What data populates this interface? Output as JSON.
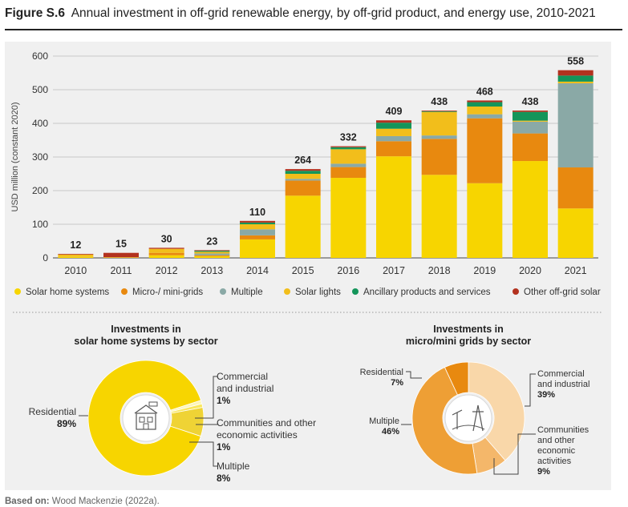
{
  "figure": {
    "number": "Figure S.6",
    "caption": "Annual investment in off-grid renewable energy, by off-grid product, and energy use, 2010-2021"
  },
  "source": {
    "label": "Based on:",
    "text": "Wood Mackenzie (2022a)."
  },
  "colors": {
    "solar_home_systems": "#f7d500",
    "micro_mini_grids": "#e8890f",
    "multiple": "#8aa9a6",
    "solar_lights": "#f2be1b",
    "ancillary": "#14955a",
    "other": "#b3321f",
    "panel_bg": "#f0f0f0"
  },
  "chart_data": [
    {
      "type": "bar",
      "stacked": true,
      "ylabel": "USD million (constant 2020)",
      "ylim": [
        0,
        600
      ],
      "yticks": [
        0,
        100,
        200,
        300,
        400,
        500,
        600
      ],
      "grid": true,
      "legend_position": "bottom",
      "categories": [
        "2010",
        "2011",
        "2012",
        "2013",
        "2014",
        "2015",
        "2016",
        "2017",
        "2018",
        "2019",
        "2020",
        "2021"
      ],
      "totals": [
        "12",
        "15",
        "30",
        "23",
        "110",
        "264",
        "332",
        "409",
        "438",
        "468",
        "438",
        "558"
      ],
      "series": [
        {
          "name": "Solar home systems",
          "color_key": "solar_home_systems",
          "values": [
            3,
            0,
            8,
            5,
            55,
            185,
            238,
            302,
            247,
            222,
            288,
            147
          ]
        },
        {
          "name": "Micro-/ mini-grids",
          "color_key": "micro_mini_grids",
          "values": [
            0,
            0,
            7,
            3,
            12,
            45,
            32,
            45,
            107,
            193,
            82,
            122
          ]
        },
        {
          "name": "Multiple",
          "color_key": "multiple",
          "values": [
            0,
            0,
            0,
            5,
            18,
            5,
            10,
            15,
            10,
            12,
            35,
            250
          ]
        },
        {
          "name": "Solar lights",
          "color_key": "solar_lights",
          "values": [
            7,
            2,
            12,
            5,
            15,
            15,
            43,
            22,
            70,
            23,
            3,
            5
          ]
        },
        {
          "name": "Ancillary products and services",
          "color_key": "ancillary",
          "values": [
            0,
            0,
            0,
            3,
            5,
            9,
            6,
            18,
            2,
            13,
            26,
            18
          ]
        },
        {
          "name": "Other off-grid solar",
          "color_key": "other",
          "values": [
            2,
            13,
            3,
            2,
            5,
            5,
            3,
            7,
            2,
            5,
            4,
            16
          ]
        }
      ]
    },
    {
      "type": "pie",
      "donut": true,
      "title": "Investments in solar home systems by sector",
      "title_lines": [
        "Investments in",
        "solar home systems by sector"
      ],
      "slices": [
        {
          "label_lines": [
            "Commercial",
            "and industrial"
          ],
          "value": 1,
          "display": "1%",
          "color": "#fdf5b8"
        },
        {
          "label_lines": [
            "Communities and other",
            "economic activities"
          ],
          "value": 1,
          "display": "1%",
          "color": "#f9e75e"
        },
        {
          "label_lines": [
            "Multiple"
          ],
          "value": 8,
          "display": "8%",
          "color": "#efd335"
        },
        {
          "label_lines": [
            "Residential"
          ],
          "value": 89,
          "display": "89%",
          "color": "#f7d500"
        }
      ]
    },
    {
      "type": "pie",
      "donut": true,
      "title": "Investments in micro/mini grids by sector",
      "title_lines": [
        "Investments in",
        "micro/mini grids by sector"
      ],
      "slices": [
        {
          "label_lines": [
            "Commercial",
            "and industrial"
          ],
          "value": 39,
          "display": "39%",
          "color": "#f9d7a9"
        },
        {
          "label_lines": [
            "Communities",
            "and other",
            "economic",
            "activities"
          ],
          "value": 9,
          "display": "9%",
          "color": "#f4b76a"
        },
        {
          "label_lines": [
            "Multiple"
          ],
          "value": 46,
          "display": "46%",
          "color": "#ee9f35"
        },
        {
          "label_lines": [
            "Residential"
          ],
          "value": 7,
          "display": "7%",
          "color": "#e8890f"
        }
      ]
    }
  ]
}
